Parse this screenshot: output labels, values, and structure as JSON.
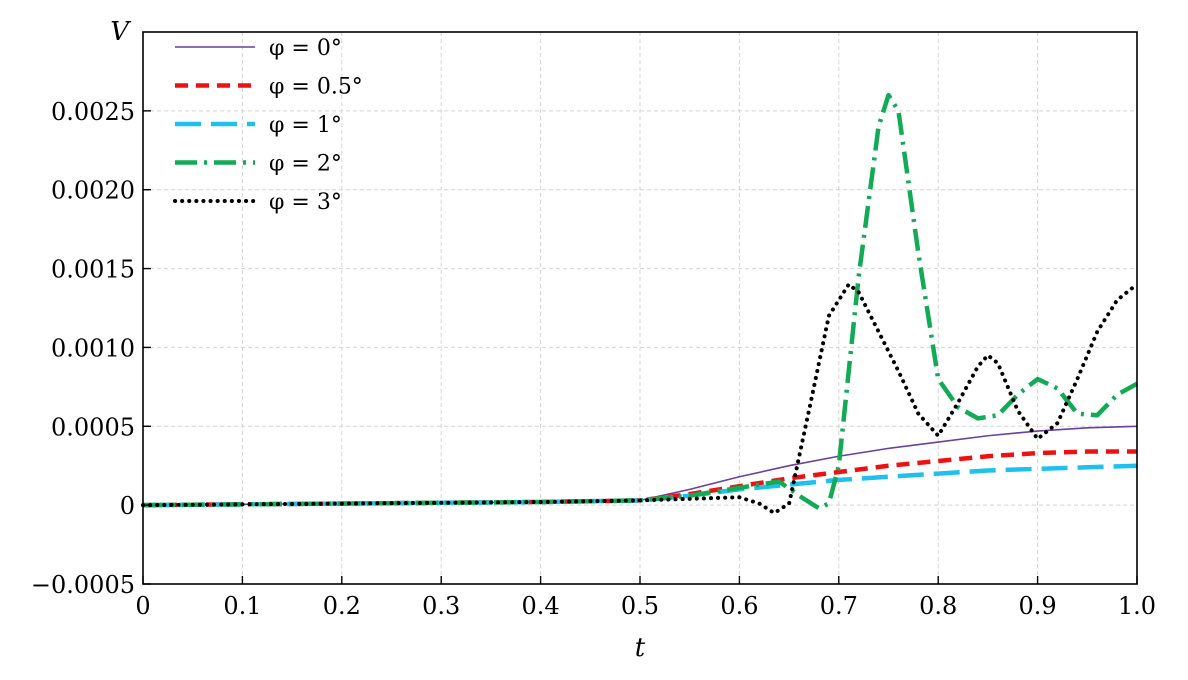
{
  "chart_data": {
    "type": "line",
    "title": "",
    "xlabel": "t",
    "ylabel": "V",
    "xlim": [
      0,
      1
    ],
    "ylim": [
      -0.0005,
      0.003
    ],
    "x_ticks": [
      0,
      0.1,
      0.2,
      0.3,
      0.4,
      0.5,
      0.6,
      0.7,
      0.8,
      0.9,
      1.0
    ],
    "x_tick_labels": [
      "0",
      "0.1",
      "0.2",
      "0.3",
      "0.4",
      "0.5",
      "0.6",
      "0.7",
      "0.8",
      "0.9",
      "1.0"
    ],
    "y_ticks": [
      -0.0005,
      0,
      0.0005,
      0.001,
      0.0015,
      0.002,
      0.0025
    ],
    "y_tick_labels": [
      "−0.0005",
      "0",
      "0.0005",
      "0.0010",
      "0.0015",
      "0.0020",
      "0.0025"
    ],
    "grid": true,
    "legend_position": "top-left",
    "series": [
      {
        "name": "φ = 0°",
        "color": "#6a3fa0",
        "dash": "solid",
        "x": [
          0,
          0.1,
          0.2,
          0.3,
          0.4,
          0.45,
          0.5,
          0.55,
          0.6,
          0.65,
          0.7,
          0.75,
          0.8,
          0.85,
          0.9,
          0.95,
          1.0
        ],
        "y": [
          0,
          5e-06,
          1e-05,
          1.5e-05,
          2e-05,
          2.5e-05,
          3e-05,
          0.0001,
          0.00018,
          0.00025,
          0.00031,
          0.00036,
          0.0004,
          0.00044,
          0.00047,
          0.00049,
          0.0005
        ]
      },
      {
        "name": "φ = 0.5°",
        "color": "#ee1111",
        "dash": "dashed",
        "x": [
          0,
          0.1,
          0.2,
          0.3,
          0.4,
          0.45,
          0.5,
          0.55,
          0.6,
          0.65,
          0.7,
          0.75,
          0.8,
          0.85,
          0.9,
          0.95,
          1.0
        ],
        "y": [
          0,
          5e-06,
          1e-05,
          1.5e-05,
          2e-05,
          2.5e-05,
          3e-05,
          7e-05,
          0.00012,
          0.00017,
          0.00021,
          0.00025,
          0.00028,
          0.00031,
          0.00033,
          0.00034,
          0.00034
        ]
      },
      {
        "name": "φ = 1°",
        "color": "#1ec0ee",
        "dash": "long-dashed",
        "x": [
          0,
          0.1,
          0.2,
          0.3,
          0.4,
          0.45,
          0.5,
          0.55,
          0.6,
          0.65,
          0.7,
          0.75,
          0.8,
          0.85,
          0.9,
          0.95,
          1.0
        ],
        "y": [
          0,
          5e-06,
          1e-05,
          1.5e-05,
          2e-05,
          2.5e-05,
          3e-05,
          6e-05,
          0.0001,
          0.00013,
          0.00016,
          0.00018,
          0.0002,
          0.00022,
          0.00023,
          0.00024,
          0.00025
        ]
      },
      {
        "name": "φ = 2°",
        "color": "#11aa55",
        "dash": "dash-dot",
        "x": [
          0,
          0.1,
          0.2,
          0.3,
          0.4,
          0.5,
          0.55,
          0.6,
          0.64,
          0.66,
          0.68,
          0.69,
          0.7,
          0.72,
          0.74,
          0.75,
          0.76,
          0.78,
          0.8,
          0.82,
          0.84,
          0.86,
          0.88,
          0.9,
          0.92,
          0.94,
          0.96,
          0.98,
          1.0
        ],
        "y": [
          0,
          5e-06,
          1e-05,
          1.5e-05,
          2e-05,
          3e-05,
          6e-05,
          0.00011,
          0.00015,
          6e-05,
          -2e-05,
          1e-05,
          0.00025,
          0.00145,
          0.0024,
          0.0026,
          0.0025,
          0.0016,
          0.0008,
          0.00062,
          0.00055,
          0.00057,
          0.0007,
          0.0008,
          0.00074,
          0.00058,
          0.00057,
          0.0007,
          0.00077
        ]
      },
      {
        "name": "φ = 3°",
        "color": "#000000",
        "dash": "dotted",
        "x": [
          0,
          0.1,
          0.2,
          0.3,
          0.4,
          0.5,
          0.55,
          0.6,
          0.62,
          0.635,
          0.65,
          0.67,
          0.69,
          0.71,
          0.72,
          0.74,
          0.76,
          0.78,
          0.8,
          0.82,
          0.84,
          0.85,
          0.86,
          0.88,
          0.9,
          0.92,
          0.94,
          0.96,
          0.98,
          1.0
        ],
        "y": [
          0,
          5e-06,
          1e-05,
          1.5e-05,
          2e-05,
          3e-05,
          4e-05,
          5e-05,
          1e-05,
          -5e-05,
          1e-05,
          0.0006,
          0.0012,
          0.0014,
          0.00135,
          0.0011,
          0.00085,
          0.00058,
          0.00044,
          0.00065,
          0.00088,
          0.00095,
          0.0009,
          0.0006,
          0.00042,
          0.00052,
          0.0008,
          0.0011,
          0.0013,
          0.0014
        ]
      }
    ]
  }
}
